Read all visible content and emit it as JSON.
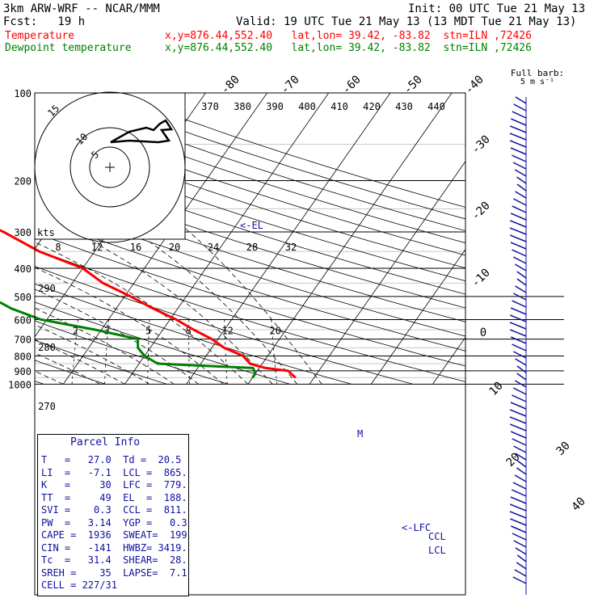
{
  "header": {
    "model": "3km ARW-WRF -- NCAR/MMM",
    "init": "Init: 00 UTC Tue 21 May 13",
    "fcst": "Fcst:   19 h",
    "valid": "Valid: 19 UTC Tue 21 May 13 (13 MDT Tue 21 May 13)",
    "temp_label": "Temperature",
    "temp_loc": "x,y=876.44,552.40   lat,lon= 39.42, -83.82  stn=ILN ,72426",
    "dew_label": "Dewpoint temperature",
    "dew_loc": "x,y=876.44,552.40   lat,lon= 39.42, -83.82  stn=ILN ,72426",
    "temp_color": "#ff0000",
    "dew_color": "#008000"
  },
  "chart_data": {
    "type": "line",
    "title": "",
    "ylabel": "",
    "y_scale": "log-pressure",
    "ylim": [
      1000,
      100
    ],
    "pressure_ticks": [
      "100",
      "200",
      "300",
      "400",
      "500",
      "600",
      "700",
      "800",
      "900",
      "1000"
    ],
    "isotherm_labels": [
      "-80",
      "-70",
      "-60",
      "-50",
      "-40",
      "-30",
      "-20",
      "-10",
      "0",
      "10",
      "20",
      "30",
      "40"
    ],
    "theta_labels": [
      "370",
      "380",
      "390",
      "400",
      "410",
      "420",
      "430",
      "440"
    ],
    "theta_left_labels": [
      "290",
      "280",
      "270"
    ],
    "mixing_ratio_labels": [
      "2",
      "3",
      "5",
      "8",
      "12",
      "20"
    ],
    "hodo_speed_labels": [
      "8",
      "12",
      "16",
      "20",
      "24",
      "28",
      "32"
    ],
    "hodo_axis_label": "kts",
    "hodo_ring_labels": [
      "5",
      "10",
      "15"
    ],
    "barb_title": "Full barb:",
    "barb_sub": "5 m s⁻¹",
    "annotations": {
      "el": "<-EL",
      "lfc": "<-LFC",
      "ccl": "CCL",
      "lcl": "LCL",
      "m": "M"
    },
    "series": [
      {
        "name": "Temperature",
        "color": "#ff0000",
        "points": [
          [
            100,
            -59
          ],
          [
            115,
            -57
          ],
          [
            140,
            -56
          ],
          [
            170,
            -57
          ],
          [
            200,
            -57
          ],
          [
            250,
            -48
          ],
          [
            300,
            -37
          ],
          [
            350,
            -29
          ],
          [
            400,
            -20
          ],
          [
            450,
            -15
          ],
          [
            500,
            -9
          ],
          [
            550,
            -4
          ],
          [
            600,
            1
          ],
          [
            650,
            5
          ],
          [
            700,
            9
          ],
          [
            750,
            12
          ],
          [
            800,
            16
          ],
          [
            850,
            18
          ],
          [
            880,
            21
          ],
          [
            900,
            25
          ],
          [
            925,
            26
          ],
          [
            950,
            27
          ]
        ]
      },
      {
        "name": "Dewpoint temperature",
        "color": "#008000",
        "points": [
          [
            100,
            -78
          ],
          [
            115,
            -77
          ],
          [
            140,
            -72
          ],
          [
            170,
            -77
          ],
          [
            200,
            -78
          ],
          [
            250,
            -67
          ],
          [
            300,
            -58
          ],
          [
            350,
            -53
          ],
          [
            400,
            -57
          ],
          [
            420,
            -60
          ],
          [
            450,
            -50
          ],
          [
            500,
            -32
          ],
          [
            550,
            -27
          ],
          [
            600,
            -21
          ],
          [
            650,
            -11
          ],
          [
            700,
            -3
          ],
          [
            750,
            -2
          ],
          [
            800,
            0
          ],
          [
            850,
            3
          ],
          [
            880,
            19
          ],
          [
            920,
            20
          ],
          [
            950,
            20
          ]
        ]
      }
    ]
  },
  "parcel": {
    "title": "Parcel Info",
    "rows": [
      "T   =   27.0  Td =  20.5",
      "LI  =   -7.1  LCL =  865.",
      "K   =     30  LFC =  779.",
      "TT  =     49  EL  =  188.",
      "SVI =    0.3  CCL =  811.",
      "PW  =   3.14  YGP =   0.3",
      "CAPE =  1936  SWEAT=  199",
      "CIN =   -141  HWBZ= 3419.",
      "Tc  =   31.4  SHEAR=  28.",
      "SREH =    35  LAPSE=  7.1",
      "CELL = 227/31"
    ]
  }
}
